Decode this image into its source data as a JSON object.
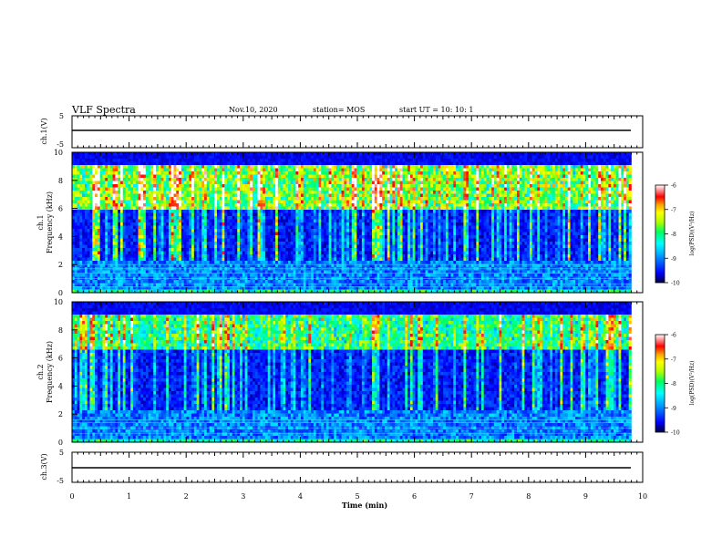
{
  "header": {
    "title": "VLF Spectra",
    "date": "Nov.10, 2020",
    "station": "station= MOS",
    "start_ut": "start  UT  =   10: 10: 1"
  },
  "chart_data": [
    {
      "type": "line",
      "panel": "ch1-waveform",
      "ylabel": "ch.1(V)",
      "ytick_labels": [
        "5",
        "-5"
      ],
      "ylim": [
        -5,
        5
      ],
      "x": [
        0,
        9.8
      ],
      "values": [
        0,
        0
      ]
    },
    {
      "type": "heatmap",
      "panel": "ch1-spectrogram",
      "ylabel": [
        "ch.1",
        "Frequency  (kHz)"
      ],
      "ytick_labels": [
        "0",
        "2",
        "4",
        "6",
        "8",
        "10"
      ],
      "ylim": [
        0,
        10
      ],
      "xlim": [
        0,
        9.8
      ],
      "colorbar": {
        "label": "log(PSD)(V²/Hz)",
        "tick_labels": [
          "-6",
          "-7",
          "-8",
          "-9",
          "-10"
        ],
        "range": [
          -10,
          -6
        ],
        "colors": [
          "#00003a",
          "#0000ff",
          "#00a0ff",
          "#00ffff",
          "#00ff60",
          "#b0ff00",
          "#ffff00",
          "#ffa000",
          "#ff0000",
          "#ffffff"
        ]
      },
      "intense_band_khz": [
        6.0,
        9.0
      ],
      "noise_lines_khz": [
        0.4,
        0.6,
        1.0,
        1.4,
        1.7,
        2.0
      ]
    },
    {
      "type": "heatmap",
      "panel": "ch2-spectrogram",
      "ylabel": [
        "ch.2",
        "Frequency  (kHz)"
      ],
      "ytick_labels": [
        "0",
        "2",
        "4",
        "6",
        "8",
        "10"
      ],
      "ylim": [
        0,
        10
      ],
      "xlim": [
        0,
        9.8
      ],
      "colorbar": {
        "label": "log(PSD)(V²/Hz)",
        "tick_labels": [
          "-6",
          "-7",
          "-8",
          "-9",
          "-10"
        ],
        "range": [
          -10,
          -6
        ]
      },
      "intense_band_khz": [
        6.5,
        9.0
      ],
      "noise_lines_khz": [
        0.6,
        1.0,
        1.4,
        1.6
      ]
    },
    {
      "type": "line",
      "panel": "ch3-waveform",
      "ylabel": "ch.3(V)",
      "ytick_labels": [
        "5",
        "-5"
      ],
      "ylim": [
        -5,
        5
      ],
      "x": [
        0,
        9.8
      ],
      "values": [
        0,
        0
      ]
    }
  ],
  "xaxis": {
    "label": "Time  (min)",
    "tick_labels": [
      "0",
      "1",
      "2",
      "3",
      "4",
      "5",
      "6",
      "7",
      "8",
      "9",
      "10"
    ],
    "range": [
      0,
      10
    ]
  }
}
